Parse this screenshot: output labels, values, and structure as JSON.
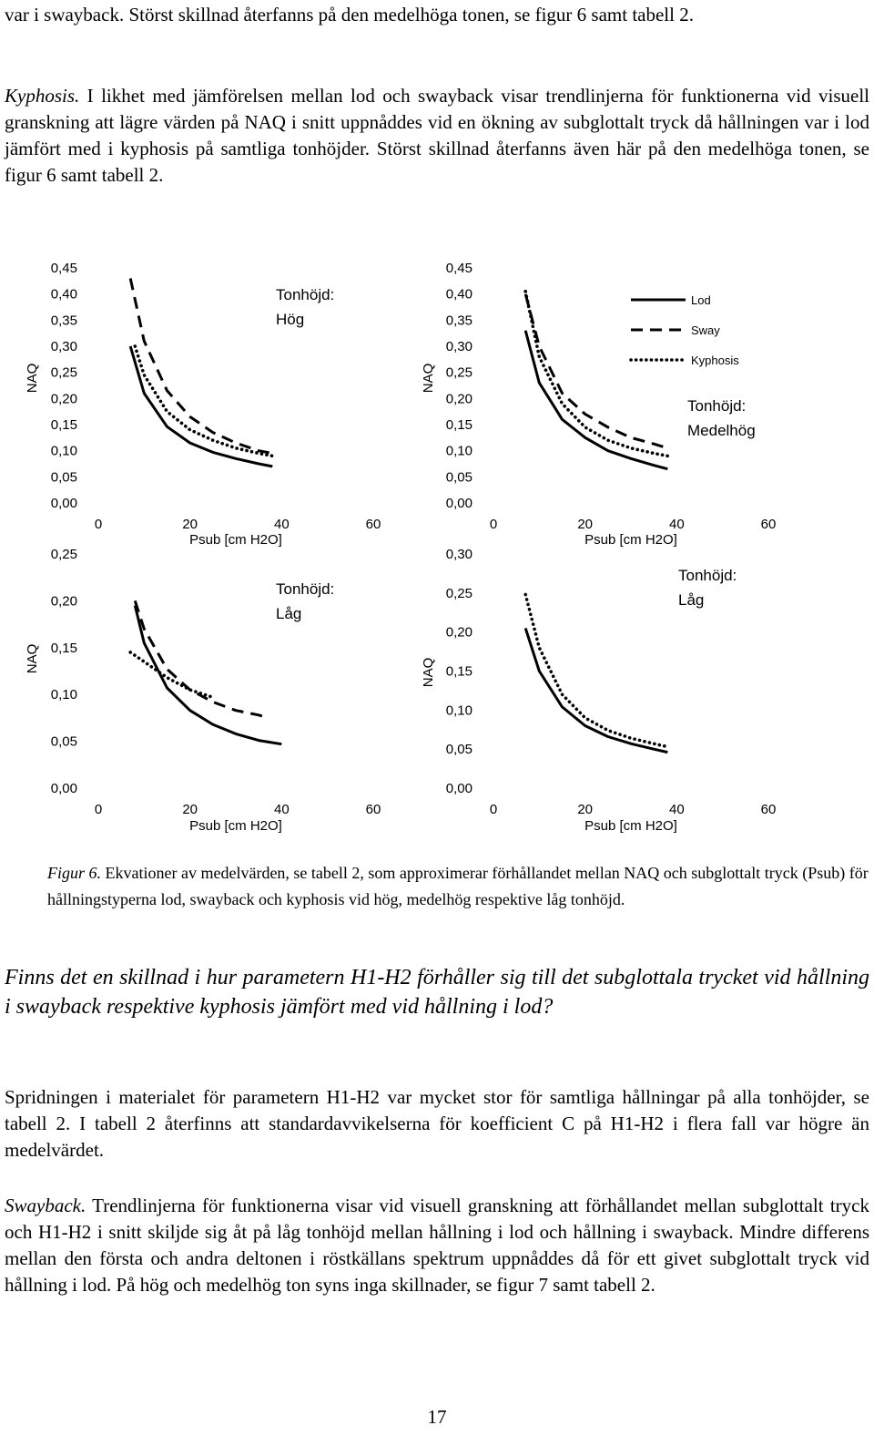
{
  "paragraphs": {
    "intro": "var i swayback. Störst skillnad återfanns på den medelhöga tonen, se figur 6 samt tabell 2.",
    "kyphosis_label": "Kyphosis.",
    "kyphosis_text": " I likhet med jämförelsen mellan lod och swayback visar trendlinjerna för funktionerna vid visuell granskning att lägre värden på NAQ i snitt uppnåddes vid en ökning av subglottalt tryck då hållningen var i lod jämfört med i kyphosis på samtliga tonhöjder. Störst skillnad återfanns även här på den medelhöga tonen, se figur 6 samt tabell 2.",
    "caption_label": "Figur 6.",
    "caption_text": " Ekvationer av medelvärden, se tabell 2, som approximerar förhållandet mellan NAQ och subglottalt tryck (Psub) för hållningstyperna lod, swayback och kyphosis vid hög, medelhög respektive låg tonhöjd.",
    "question": "Finns det en skillnad i hur parametern H1-H2 förhåller sig till det subglottala trycket vid hållning i swayback respektive kyphosis jämfört med vid hållning i lod?",
    "spread": "Spridningen i materialet för parametern H1-H2 var mycket stor för samtliga hållningar på alla tonhöjder, se tabell 2. I tabell 2 återfinns att standardavvikelserna för koefficient C på H1-H2 i flera fall var högre än medelvärdet.",
    "swayback_label": "Swayback.",
    "swayback_text": " Trendlinjerna för funktionerna visar vid visuell granskning att förhållandet mellan subglottalt tryck och H1-H2 i snitt skiljde sig åt på låg tonhöjd mellan hållning i lod och hållning i swayback. Mindre differens mellan den första och andra deltonen i röstkällans spektrum uppnåddes då för ett givet subglottalt tryck vid hållning i lod. På hög och medelhög ton syns inga skillnader, se figur 7 samt tabell 2.",
    "page_number": "17"
  },
  "chart_data": [
    {
      "type": "line",
      "annotation": [
        "Tonhöjd:",
        "Hög"
      ],
      "xlabel": "Psub [cm H2O]",
      "ylabel": "NAQ",
      "xlim": [
        0,
        60
      ],
      "ylim": [
        0,
        0.45
      ],
      "xticks": [
        "0",
        "20",
        "40",
        "60"
      ],
      "yticks": [
        "0,00",
        "0,05",
        "0,10",
        "0,15",
        "0,20",
        "0,25",
        "0,30",
        "0,35",
        "0,40",
        "0,45"
      ],
      "series": [
        {
          "name": "Lod",
          "style": "solid",
          "x": [
            7,
            10,
            15,
            20,
            25,
            30,
            35,
            38
          ],
          "y": [
            0.3,
            0.21,
            0.146,
            0.115,
            0.097,
            0.085,
            0.075,
            0.07
          ]
        },
        {
          "name": "Sway",
          "style": "dashed",
          "x": [
            7,
            10,
            15,
            20,
            25,
            30,
            35,
            38
          ],
          "y": [
            0.43,
            0.31,
            0.215,
            0.165,
            0.135,
            0.115,
            0.1,
            0.095
          ]
        },
        {
          "name": "Kyphosis",
          "style": "dotted",
          "x": [
            8,
            10,
            15,
            20,
            25,
            30,
            35,
            38
          ],
          "y": [
            0.3,
            0.245,
            0.175,
            0.14,
            0.12,
            0.105,
            0.095,
            0.09
          ]
        }
      ]
    },
    {
      "type": "line",
      "annotation": [
        "Tonhöjd:",
        "Medelhög"
      ],
      "legend": [
        "Lod",
        "Sway",
        "Kyphosis"
      ],
      "legend_position": "top-right",
      "xlabel": "Psub [cm H2O]",
      "ylabel": "NAQ",
      "xlim": [
        0,
        60
      ],
      "ylim": [
        0,
        0.45
      ],
      "xticks": [
        "0",
        "20",
        "40",
        "60"
      ],
      "yticks": [
        "0,00",
        "0,05",
        "0,10",
        "0,15",
        "0,20",
        "0,25",
        "0,30",
        "0,35",
        "0,40",
        "0,45"
      ],
      "series": [
        {
          "name": "Lod",
          "style": "solid",
          "x": [
            7,
            10,
            15,
            20,
            25,
            30,
            35,
            38
          ],
          "y": [
            0.33,
            0.23,
            0.16,
            0.125,
            0.1,
            0.085,
            0.072,
            0.065
          ]
        },
        {
          "name": "Sway",
          "style": "dashed",
          "x": [
            7,
            10,
            15,
            20,
            25,
            30,
            35,
            38
          ],
          "y": [
            0.4,
            0.3,
            0.21,
            0.17,
            0.145,
            0.125,
            0.113,
            0.105
          ]
        },
        {
          "name": "Kyphosis",
          "style": "dotted",
          "x": [
            7,
            10,
            15,
            20,
            25,
            30,
            35,
            38
          ],
          "y": [
            0.405,
            0.28,
            0.19,
            0.145,
            0.12,
            0.105,
            0.095,
            0.09
          ]
        }
      ]
    },
    {
      "type": "line",
      "annotation": [
        "Tonhöjd:",
        "Låg"
      ],
      "xlabel": "Psub [cm H2O]",
      "ylabel": "NAQ",
      "xlim": [
        0,
        60
      ],
      "ylim": [
        0,
        0.25
      ],
      "xticks": [
        "0",
        "20",
        "40",
        "60"
      ],
      "yticks": [
        "0,00",
        "0,05",
        "0,10",
        "0,15",
        "0,20",
        "0,25"
      ],
      "series": [
        {
          "name": "Lod",
          "style": "solid",
          "x": [
            8,
            10,
            15,
            20,
            25,
            30,
            35,
            40
          ],
          "y": [
            0.195,
            0.155,
            0.107,
            0.083,
            0.068,
            0.058,
            0.051,
            0.047
          ]
        },
        {
          "name": "Sway",
          "style": "dashed",
          "x": [
            8,
            10,
            15,
            20,
            25,
            30,
            35,
            37
          ],
          "y": [
            0.2,
            0.17,
            0.127,
            0.105,
            0.092,
            0.083,
            0.078,
            0.075
          ]
        },
        {
          "name": "Kyphosis",
          "style": "dotted",
          "x": [
            7,
            10,
            15,
            20,
            25
          ],
          "y": [
            0.145,
            0.135,
            0.118,
            0.105,
            0.097
          ]
        }
      ]
    },
    {
      "type": "line",
      "annotation": [
        "Tonhöjd:",
        "Låg"
      ],
      "xlabel": "Psub [cm H2O]",
      "ylabel": "NAQ",
      "xlim": [
        0,
        60
      ],
      "ylim": [
        0,
        0.3
      ],
      "xticks": [
        "0",
        "20",
        "40",
        "60"
      ],
      "yticks": [
        "0,00",
        "0,05",
        "0,10",
        "0,15",
        "0,20",
        "0,25",
        "0,30"
      ],
      "series": [
        {
          "name": "Lod",
          "style": "solid",
          "x": [
            7,
            10,
            15,
            20,
            25,
            30,
            35,
            38
          ],
          "y": [
            0.205,
            0.15,
            0.104,
            0.08,
            0.066,
            0.057,
            0.05,
            0.046
          ]
        },
        {
          "name": "Kyphosis",
          "style": "dotted",
          "x": [
            7,
            10,
            15,
            20,
            25,
            30,
            35,
            38
          ],
          "y": [
            0.248,
            0.18,
            0.12,
            0.09,
            0.074,
            0.064,
            0.057,
            0.053
          ]
        }
      ]
    }
  ]
}
